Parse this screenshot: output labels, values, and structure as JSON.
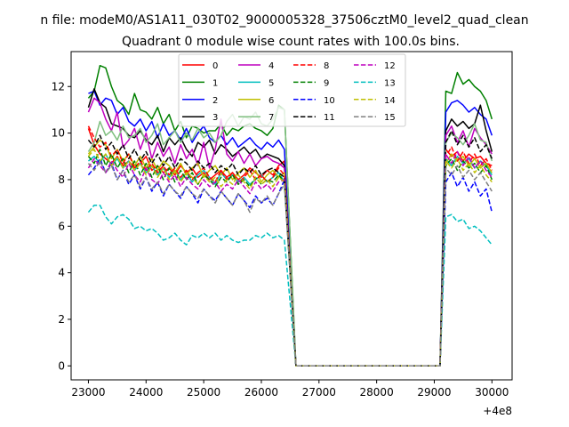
{
  "chart_data": {
    "type": "line",
    "suptitle": "n file: modeM0/AS1A11_030T02_9000005328_37506cztM0_level2_quad_clean",
    "title": "Quadrant 0 module wise count rates with 100.0s bins.",
    "xlabel": "",
    "ylabel": "",
    "x_offset_label": "+4e8",
    "xlim": [
      22700,
      30350
    ],
    "ylim": [
      -0.6,
      13.5
    ],
    "xticks": [
      23000,
      24000,
      25000,
      26000,
      27000,
      28000,
      29000,
      30000
    ],
    "xtick_labels": [
      "23000",
      "24000",
      "25000",
      "26000",
      "27000",
      "28000",
      "29000",
      "30000"
    ],
    "yticks": [
      0,
      2,
      4,
      6,
      8,
      10,
      12
    ],
    "ytick_labels": [
      "0",
      "2",
      "4",
      "6",
      "8",
      "10",
      "12"
    ],
    "grid": false,
    "legend_position": "top-center",
    "legend_columns": 4,
    "segments": {
      "a": {
        "start": 23000,
        "end": 26400,
        "step": 100
      },
      "b": {
        "start": 29200,
        "end": 30000,
        "step": 100
      },
      "zero_start": 26600,
      "zero_end": 29100
    },
    "series": [
      {
        "name": "0",
        "color": "#ff0000",
        "dash": "solid",
        "a": [
          10.2,
          9.5,
          9.1,
          8.9,
          8.7,
          9.0,
          8.6,
          8.8,
          8.5,
          8.7,
          9.0,
          8.4,
          8.6,
          8.3,
          8.5,
          8.2,
          8.6,
          8.3,
          8.5,
          8.1,
          8.3,
          8.0,
          8.2,
          8.4,
          8.1,
          8.3,
          8.0,
          8.2,
          8.5,
          8.3,
          8.1,
          8.4,
          8.2,
          8.6,
          8.8
        ],
        "b": [
          9.3,
          9.0,
          9.2,
          8.8,
          9.1,
          8.9,
          9.0,
          8.7,
          8.6
        ]
      },
      {
        "name": "1",
        "color": "#008000",
        "dash": "solid",
        "a": [
          11.5,
          11.8,
          12.9,
          12.8,
          12.0,
          11.4,
          11.2,
          10.8,
          11.7,
          11.0,
          10.9,
          10.6,
          11.1,
          10.4,
          10.8,
          10.1,
          10.5,
          9.8,
          10.3,
          10.2,
          10.0,
          10.1,
          10.1,
          10.4,
          9.9,
          10.2,
          10.1,
          10.3,
          10.4,
          10.2,
          10.1,
          9.9,
          10.2,
          11.2,
          11.0
        ],
        "b": [
          11.8,
          11.7,
          12.6,
          12.1,
          12.3,
          12.0,
          11.8,
          11.4,
          10.6
        ]
      },
      {
        "name": "2",
        "color": "#0000ff",
        "dash": "solid",
        "a": [
          11.7,
          11.8,
          11.2,
          11.5,
          11.4,
          10.8,
          11.1,
          10.5,
          10.3,
          10.6,
          10.1,
          10.5,
          9.8,
          10.4,
          9.9,
          10.1,
          9.7,
          10.2,
          9.6,
          10.0,
          10.3,
          9.8,
          9.6,
          9.9,
          9.5,
          9.8,
          9.4,
          9.6,
          9.8,
          9.5,
          9.3,
          9.6,
          9.4,
          9.7,
          9.3
        ],
        "b": [
          10.9,
          11.3,
          11.4,
          11.2,
          10.9,
          11.1,
          10.8,
          10.6,
          9.9
        ]
      },
      {
        "name": "3",
        "color": "#000000",
        "dash": "solid",
        "a": [
          11.1,
          11.9,
          11.3,
          11.1,
          10.4,
          10.3,
          10.2,
          9.9,
          9.8,
          10.1,
          9.7,
          9.5,
          9.9,
          9.2,
          9.8,
          9.5,
          9.8,
          9.3,
          9.0,
          9.6,
          9.4,
          9.7,
          9.1,
          9.5,
          9.3,
          9.0,
          9.2,
          9.4,
          9.1,
          9.3,
          8.9,
          9.1,
          9.0,
          8.9,
          8.6
        ],
        "b": [
          10.1,
          10.6,
          10.3,
          10.5,
          10.2,
          10.4,
          11.2,
          10.1,
          9.2
        ]
      },
      {
        "name": "4",
        "color": "#bf00bf",
        "dash": "solid",
        "a": [
          10.9,
          11.5,
          11.3,
          10.6,
          10.1,
          10.9,
          9.4,
          9.7,
          10.2,
          9.3,
          10.0,
          8.9,
          9.6,
          9.0,
          9.4,
          8.7,
          9.5,
          8.9,
          9.3,
          8.6,
          9.6,
          8.5,
          9.3,
          10.6,
          9.1,
          8.8,
          9.2,
          8.7,
          9.1,
          8.6,
          8.9,
          9.0,
          8.8,
          8.7,
          8.5
        ],
        "b": [
          9.9,
          10.3,
          9.6,
          10.1,
          9.4,
          10.2,
          9.8,
          9.5,
          9.1
        ]
      },
      {
        "name": "5",
        "color": "#00bfbf",
        "dash": "solid",
        "a": [
          8.8,
          9.0,
          8.7,
          9.1,
          8.6,
          8.9,
          8.5,
          8.8,
          8.4,
          8.7,
          8.3,
          8.6,
          8.2,
          8.5,
          8.1,
          8.4,
          8.0,
          8.3,
          7.9,
          8.2,
          8.4,
          8.1,
          7.8,
          8.3,
          8.0,
          8.2,
          7.9,
          8.1,
          7.8,
          8.0,
          8.2,
          7.9,
          8.1,
          8.3,
          7.9
        ],
        "b": [
          8.9,
          8.6,
          9.0,
          8.7,
          8.9,
          8.5,
          8.8,
          8.6,
          8.2
        ]
      },
      {
        "name": "6",
        "color": "#bfbf00",
        "dash": "solid",
        "a": [
          9.1,
          9.4,
          9.7,
          9.5,
          8.9,
          9.3,
          8.8,
          9.1,
          8.6,
          9.0,
          8.5,
          8.9,
          8.4,
          8.8,
          8.6,
          8.3,
          8.7,
          8.2,
          8.5,
          8.7,
          8.1,
          8.4,
          8.6,
          8.2,
          8.5,
          8.0,
          8.3,
          8.5,
          8.1,
          8.4,
          7.9,
          8.2,
          8.4,
          8.1,
          8.3
        ],
        "b": [
          8.7,
          9.1,
          8.8,
          9.0,
          8.6,
          8.9,
          8.5,
          8.7,
          8.3
        ]
      },
      {
        "name": "7",
        "color": "#7fbf7f",
        "dash": "solid",
        "a": [
          9.2,
          9.6,
          10.5,
          9.9,
          10.1,
          9.7,
          10.3,
          9.8,
          9.9,
          10.2,
          9.6,
          9.9,
          10.4,
          9.5,
          9.8,
          10.1,
          9.6,
          10.0,
          9.7,
          10.2,
          9.8,
          10.0,
          9.6,
          9.9,
          10.5,
          10.8,
          10.3,
          10.7,
          10.6,
          10.9,
          10.4,
          10.3,
          10.6,
          11.1,
          11.0
        ],
        "b": [
          9.6,
          10.0,
          9.8,
          9.5,
          9.9,
          10.4,
          9.7,
          9.6,
          8.8
        ]
      },
      {
        "name": "8",
        "color": "#ff0000",
        "dash": "dashed",
        "a": [
          10.3,
          9.8,
          9.4,
          9.6,
          9.0,
          9.3,
          8.7,
          9.1,
          8.5,
          8.8,
          8.4,
          8.7,
          8.3,
          8.6,
          8.2,
          8.5,
          8.1,
          8.4,
          8.0,
          8.3,
          8.5,
          8.1,
          7.9,
          8.4,
          8.0,
          8.3,
          7.8,
          8.1,
          8.4,
          8.0,
          8.2,
          7.9,
          8.1,
          8.5,
          8.2
        ],
        "b": [
          9.0,
          9.4,
          8.8,
          9.2,
          8.7,
          9.1,
          8.6,
          8.9,
          8.4
        ]
      },
      {
        "name": "9",
        "color": "#008000",
        "dash": "dashed",
        "a": [
          9.0,
          8.7,
          9.3,
          8.6,
          9.1,
          8.5,
          8.9,
          8.3,
          8.8,
          8.2,
          8.7,
          8.1,
          8.6,
          8.0,
          8.5,
          7.9,
          8.4,
          8.0,
          8.3,
          7.8,
          8.2,
          8.0,
          7.7,
          8.1,
          7.9,
          8.2,
          7.8,
          8.0,
          7.7,
          8.1,
          7.8,
          8.0,
          7.9,
          8.2,
          7.9
        ],
        "b": [
          8.6,
          8.9,
          8.4,
          8.8,
          8.5,
          8.7,
          8.3,
          8.6,
          8.0
        ]
      },
      {
        "name": "10",
        "color": "#0000ff",
        "dash": "dashed",
        "a": [
          8.2,
          8.5,
          8.9,
          8.3,
          8.7,
          8.0,
          8.4,
          7.8,
          8.2,
          7.6,
          8.1,
          7.5,
          7.9,
          7.3,
          7.8,
          7.5,
          7.2,
          7.7,
          7.4,
          7.0,
          7.6,
          7.3,
          7.1,
          7.5,
          7.2,
          6.9,
          7.4,
          7.1,
          6.8,
          7.3,
          7.0,
          7.2,
          6.9,
          7.4,
          8.0
        ],
        "b": [
          7.9,
          8.3,
          7.7,
          8.1,
          7.5,
          7.9,
          7.3,
          7.6,
          6.6
        ]
      },
      {
        "name": "11",
        "color": "#000000",
        "dash": "dashed",
        "a": [
          9.7,
          9.4,
          9.9,
          9.3,
          9.6,
          9.1,
          9.5,
          8.9,
          9.3,
          8.8,
          9.2,
          8.7,
          9.1,
          8.6,
          9.0,
          8.5,
          8.9,
          8.7,
          8.4,
          8.8,
          8.5,
          8.7,
          8.3,
          8.6,
          8.4,
          8.7,
          8.2,
          8.5,
          8.3,
          8.6,
          8.2,
          8.4,
          8.5,
          8.3,
          8.1
        ],
        "b": [
          9.6,
          10.1,
          9.5,
          9.9,
          9.4,
          9.8,
          9.2,
          9.5,
          8.9
        ]
      },
      {
        "name": "12",
        "color": "#bf00bf",
        "dash": "dashed",
        "a": [
          8.5,
          8.9,
          8.6,
          8.3,
          8.8,
          8.4,
          8.1,
          8.7,
          8.2,
          7.9,
          8.5,
          8.0,
          7.8,
          8.3,
          7.9,
          8.2,
          7.7,
          8.1,
          7.8,
          7.6,
          8.0,
          7.7,
          7.9,
          7.5,
          7.8,
          7.6,
          8.0,
          7.7,
          7.4,
          7.9,
          7.6,
          7.8,
          7.5,
          7.9,
          8.0
        ],
        "b": [
          9.1,
          8.7,
          9.2,
          8.6,
          9.0,
          8.5,
          8.8,
          8.4,
          8.1
        ]
      },
      {
        "name": "13",
        "color": "#00bfbf",
        "dash": "dashed",
        "a": [
          6.6,
          6.9,
          6.9,
          6.4,
          6.1,
          6.4,
          6.5,
          6.3,
          5.9,
          6.0,
          5.8,
          5.9,
          5.7,
          5.4,
          5.5,
          5.7,
          5.4,
          5.2,
          5.6,
          5.5,
          5.7,
          5.5,
          5.7,
          5.4,
          5.6,
          5.4,
          5.3,
          5.4,
          5.4,
          5.6,
          5.5,
          5.7,
          5.5,
          5.6,
          5.4
        ],
        "b": [
          6.4,
          6.5,
          6.2,
          6.3,
          5.9,
          6.0,
          5.8,
          5.5,
          5.2
        ]
      },
      {
        "name": "14",
        "color": "#bfbf00",
        "dash": "dashed",
        "a": [
          9.0,
          9.3,
          8.8,
          9.1,
          8.6,
          9.0,
          8.5,
          8.8,
          8.4,
          8.7,
          8.2,
          8.6,
          8.1,
          8.5,
          8.0,
          8.4,
          7.9,
          8.3,
          8.1,
          7.8,
          8.2,
          7.9,
          8.1,
          7.7,
          8.0,
          7.8,
          8.2,
          7.9,
          7.6,
          8.1,
          7.8,
          8.0,
          7.7,
          8.1,
          7.9
        ],
        "b": [
          8.8,
          8.5,
          8.9,
          8.4,
          8.7,
          8.3,
          8.6,
          8.2,
          7.9
        ]
      },
      {
        "name": "15",
        "color": "#7f7f7f",
        "dash": "dashed",
        "a": [
          8.7,
          8.4,
          8.8,
          8.3,
          8.6,
          8.0,
          8.4,
          7.9,
          8.2,
          7.7,
          8.1,
          7.6,
          7.9,
          7.4,
          7.8,
          7.5,
          7.3,
          7.7,
          7.4,
          7.2,
          7.6,
          7.3,
          7.0,
          7.5,
          7.2,
          6.9,
          7.4,
          7.1,
          6.6,
          7.2,
          7.0,
          7.3,
          6.9,
          7.4,
          7.8
        ],
        "b": [
          8.5,
          8.2,
          8.6,
          8.1,
          8.4,
          8.0,
          8.3,
          7.9,
          7.5
        ]
      }
    ]
  }
}
